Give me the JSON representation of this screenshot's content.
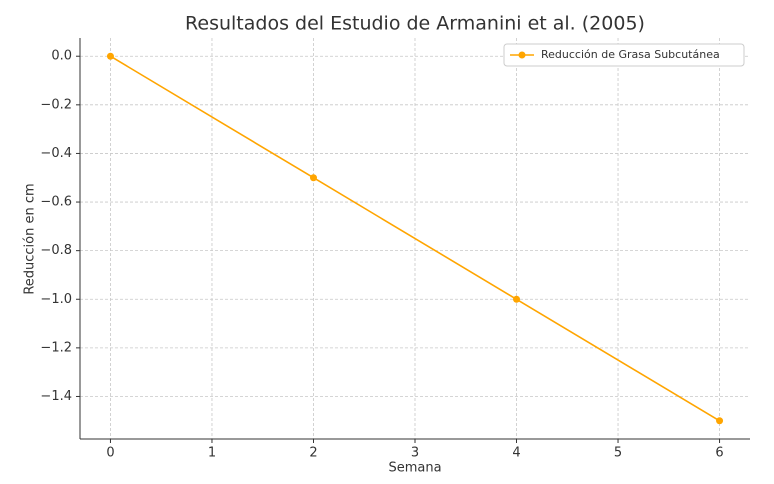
{
  "chart_data": {
    "type": "line",
    "title": "Resultados del Estudio de Armanini et al. (2005)",
    "x_label": "Semana",
    "y_label": "Reducción en cm",
    "x": [
      0,
      2,
      4,
      6
    ],
    "series": [
      {
        "name": "Reducción de Grasa Subcutánea",
        "color": "#ffa500",
        "values": [
          0,
          -0.5,
          -1,
          -1.5
        ]
      }
    ],
    "xlim": [
      -0.3,
      6.3
    ],
    "xticks": [
      0,
      1,
      2,
      3,
      4,
      5,
      6
    ],
    "ylim": [
      -1.575,
      0.075
    ],
    "yticks": [
      {
        "value": 0,
        "label": "0.0"
      },
      {
        "value": -0.2,
        "label": "−0.2"
      },
      {
        "value": -0.4,
        "label": "−0.4"
      },
      {
        "value": -0.6,
        "label": "−0.6"
      },
      {
        "value": -0.8,
        "label": "−0.8"
      },
      {
        "value": -1.0,
        "label": "−1.0"
      },
      {
        "value": -1.2,
        "label": "−1.2"
      },
      {
        "value": -1.4,
        "label": "−1.4"
      }
    ],
    "grid": true,
    "legend": "upper right"
  }
}
